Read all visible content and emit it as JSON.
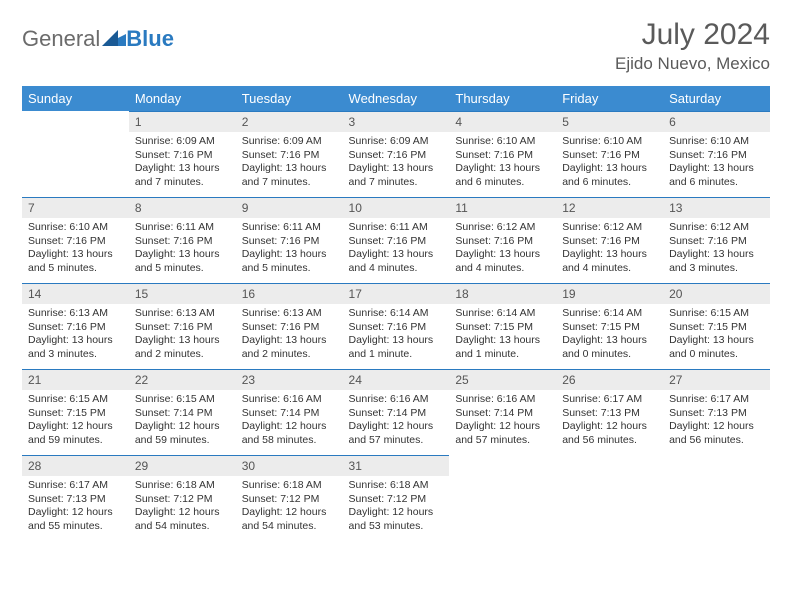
{
  "brand": {
    "part1": "General",
    "part2": "Blue"
  },
  "title": "July 2024",
  "location": "Ejido Nuevo, Mexico",
  "colors": {
    "header_bg": "#3b8bd0",
    "header_text": "#ffffff",
    "daynum_bg": "#ececec",
    "accent": "#2a7ac0",
    "body_text": "#333333"
  },
  "weekdays": [
    "Sunday",
    "Monday",
    "Tuesday",
    "Wednesday",
    "Thursday",
    "Friday",
    "Saturday"
  ],
  "first_weekday_index": 1,
  "days": [
    {
      "n": 1,
      "sunrise": "6:09 AM",
      "sunset": "7:16 PM",
      "daylight": "13 hours and 7 minutes."
    },
    {
      "n": 2,
      "sunrise": "6:09 AM",
      "sunset": "7:16 PM",
      "daylight": "13 hours and 7 minutes."
    },
    {
      "n": 3,
      "sunrise": "6:09 AM",
      "sunset": "7:16 PM",
      "daylight": "13 hours and 7 minutes."
    },
    {
      "n": 4,
      "sunrise": "6:10 AM",
      "sunset": "7:16 PM",
      "daylight": "13 hours and 6 minutes."
    },
    {
      "n": 5,
      "sunrise": "6:10 AM",
      "sunset": "7:16 PM",
      "daylight": "13 hours and 6 minutes."
    },
    {
      "n": 6,
      "sunrise": "6:10 AM",
      "sunset": "7:16 PM",
      "daylight": "13 hours and 6 minutes."
    },
    {
      "n": 7,
      "sunrise": "6:10 AM",
      "sunset": "7:16 PM",
      "daylight": "13 hours and 5 minutes."
    },
    {
      "n": 8,
      "sunrise": "6:11 AM",
      "sunset": "7:16 PM",
      "daylight": "13 hours and 5 minutes."
    },
    {
      "n": 9,
      "sunrise": "6:11 AM",
      "sunset": "7:16 PM",
      "daylight": "13 hours and 5 minutes."
    },
    {
      "n": 10,
      "sunrise": "6:11 AM",
      "sunset": "7:16 PM",
      "daylight": "13 hours and 4 minutes."
    },
    {
      "n": 11,
      "sunrise": "6:12 AM",
      "sunset": "7:16 PM",
      "daylight": "13 hours and 4 minutes."
    },
    {
      "n": 12,
      "sunrise": "6:12 AM",
      "sunset": "7:16 PM",
      "daylight": "13 hours and 4 minutes."
    },
    {
      "n": 13,
      "sunrise": "6:12 AM",
      "sunset": "7:16 PM",
      "daylight": "13 hours and 3 minutes."
    },
    {
      "n": 14,
      "sunrise": "6:13 AM",
      "sunset": "7:16 PM",
      "daylight": "13 hours and 3 minutes."
    },
    {
      "n": 15,
      "sunrise": "6:13 AM",
      "sunset": "7:16 PM",
      "daylight": "13 hours and 2 minutes."
    },
    {
      "n": 16,
      "sunrise": "6:13 AM",
      "sunset": "7:16 PM",
      "daylight": "13 hours and 2 minutes."
    },
    {
      "n": 17,
      "sunrise": "6:14 AM",
      "sunset": "7:16 PM",
      "daylight": "13 hours and 1 minute."
    },
    {
      "n": 18,
      "sunrise": "6:14 AM",
      "sunset": "7:15 PM",
      "daylight": "13 hours and 1 minute."
    },
    {
      "n": 19,
      "sunrise": "6:14 AM",
      "sunset": "7:15 PM",
      "daylight": "13 hours and 0 minutes."
    },
    {
      "n": 20,
      "sunrise": "6:15 AM",
      "sunset": "7:15 PM",
      "daylight": "13 hours and 0 minutes."
    },
    {
      "n": 21,
      "sunrise": "6:15 AM",
      "sunset": "7:15 PM",
      "daylight": "12 hours and 59 minutes."
    },
    {
      "n": 22,
      "sunrise": "6:15 AM",
      "sunset": "7:14 PM",
      "daylight": "12 hours and 59 minutes."
    },
    {
      "n": 23,
      "sunrise": "6:16 AM",
      "sunset": "7:14 PM",
      "daylight": "12 hours and 58 minutes."
    },
    {
      "n": 24,
      "sunrise": "6:16 AM",
      "sunset": "7:14 PM",
      "daylight": "12 hours and 57 minutes."
    },
    {
      "n": 25,
      "sunrise": "6:16 AM",
      "sunset": "7:14 PM",
      "daylight": "12 hours and 57 minutes."
    },
    {
      "n": 26,
      "sunrise": "6:17 AM",
      "sunset": "7:13 PM",
      "daylight": "12 hours and 56 minutes."
    },
    {
      "n": 27,
      "sunrise": "6:17 AM",
      "sunset": "7:13 PM",
      "daylight": "12 hours and 56 minutes."
    },
    {
      "n": 28,
      "sunrise": "6:17 AM",
      "sunset": "7:13 PM",
      "daylight": "12 hours and 55 minutes."
    },
    {
      "n": 29,
      "sunrise": "6:18 AM",
      "sunset": "7:12 PM",
      "daylight": "12 hours and 54 minutes."
    },
    {
      "n": 30,
      "sunrise": "6:18 AM",
      "sunset": "7:12 PM",
      "daylight": "12 hours and 54 minutes."
    },
    {
      "n": 31,
      "sunrise": "6:18 AM",
      "sunset": "7:12 PM",
      "daylight": "12 hours and 53 minutes."
    }
  ],
  "labels": {
    "sunrise": "Sunrise:",
    "sunset": "Sunset:",
    "daylight": "Daylight:"
  }
}
